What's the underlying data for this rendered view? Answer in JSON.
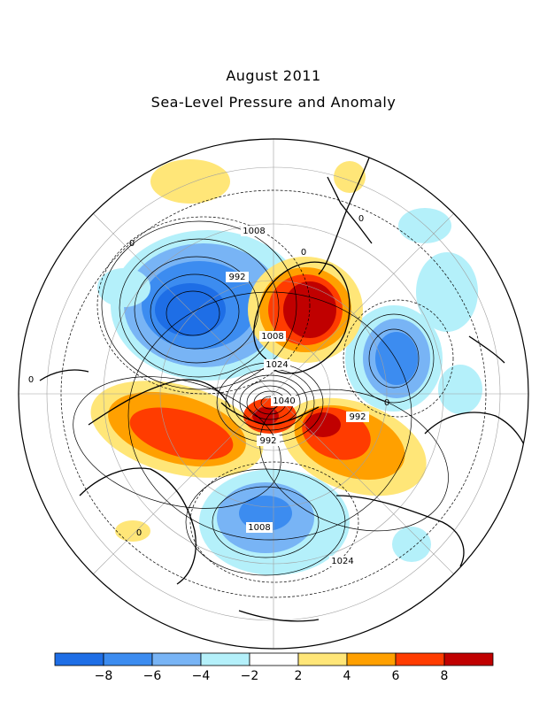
{
  "title": "August 2011",
  "subtitle": "Sea-Level Pressure and Anomaly",
  "colorbar": {
    "colors": [
      "#1e6ee6",
      "#3c8cf0",
      "#78b4f5",
      "#b4f0fa",
      "#ffffff",
      "#ffe678",
      "#ffa000",
      "#ff3c00",
      "#c00000"
    ],
    "tick_labels": [
      "-8",
      "-6",
      "-4",
      "-2",
      "2",
      "4",
      "6",
      "8"
    ]
  },
  "contour_labels": [
    "1008",
    "992",
    "1008",
    "1024",
    "1040",
    "992",
    "992",
    "1008",
    "1024",
    "0",
    "0",
    "0",
    "0",
    "0",
    "0"
  ],
  "anomaly_regions": [
    {
      "label": "neg",
      "color": "#78b4f5"
    },
    {
      "label": "pos",
      "color": "#ff3c00"
    }
  ]
}
